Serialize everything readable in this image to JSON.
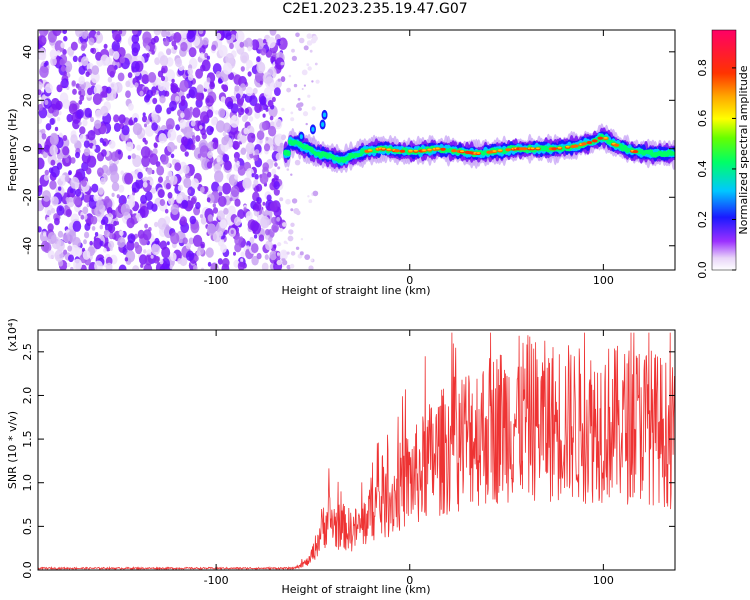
{
  "title": "C2E1.2023.235.19.47.G07",
  "chart_data": [
    {
      "type": "heatmap",
      "xlabel": "Height of straight line (km)",
      "ylabel": "Frequency (Hz)",
      "xlim": [
        -192,
        137
      ],
      "ylim": [
        -50,
        49
      ],
      "xticks": [
        -100,
        0,
        100
      ],
      "yticks": [
        -40,
        -20,
        0,
        20,
        40
      ],
      "colorbar": {
        "label": "Normalized spectral amplitude",
        "range": [
          0.0,
          0.95
        ],
        "ticks": [
          "0.0",
          "0.2",
          "0.4",
          "0.6",
          "0.8"
        ]
      },
      "ridge": [
        {
          "x": -62,
          "f": 3
        },
        {
          "x": -55,
          "f": 1
        },
        {
          "x": -48,
          "f": -2
        },
        {
          "x": -42,
          "f": -3
        },
        {
          "x": -36,
          "f": -5
        },
        {
          "x": -30,
          "f": -3
        },
        {
          "x": -22,
          "f": -1
        },
        {
          "x": -15,
          "f": 0
        },
        {
          "x": -5,
          "f": -1
        },
        {
          "x": 5,
          "f": -1
        },
        {
          "x": 15,
          "f": 0
        },
        {
          "x": 25,
          "f": -1
        },
        {
          "x": 35,
          "f": -2
        },
        {
          "x": 45,
          "f": -1
        },
        {
          "x": 55,
          "f": 0
        },
        {
          "x": 65,
          "f": 0
        },
        {
          "x": 75,
          "f": 0
        },
        {
          "x": 85,
          "f": 1
        },
        {
          "x": 95,
          "f": 3
        },
        {
          "x": 100,
          "f": 5
        },
        {
          "x": 105,
          "f": 2
        },
        {
          "x": 115,
          "f": -1
        },
        {
          "x": 125,
          "f": -2
        },
        {
          "x": 137,
          "f": -2
        }
      ],
      "noise_region": {
        "x_from": -192,
        "x_to": -65
      }
    },
    {
      "type": "line",
      "xlabel": "Height of straight line (km)",
      "ylabel": "SNR (10 * v/v)",
      "multiplier": "(x10⁴)",
      "xlim": [
        -192,
        137
      ],
      "ylim": [
        0,
        2.75
      ],
      "xticks": [
        -100,
        0,
        100
      ],
      "yticks": [
        "0.0",
        "0.5",
        "1.0",
        "1.5",
        "2.0",
        "2.5"
      ],
      "color": "#ee3333",
      "series": [
        {
          "x": [
            -192,
            -100,
            -60,
            -52,
            -48,
            -45,
            -42,
            -40,
            -38,
            -35,
            -30,
            -25,
            -22,
            -20,
            -15,
            -10,
            -5,
            0,
            5,
            10,
            20,
            30,
            40,
            50,
            60,
            70,
            80,
            90,
            100,
            110,
            120,
            130,
            137
          ],
          "y": [
            0.02,
            0.02,
            0.02,
            0.1,
            0.3,
            0.5,
            0.6,
            0.55,
            0.5,
            0.5,
            0.45,
            0.5,
            0.6,
            0.7,
            0.75,
            0.8,
            0.95,
            1.05,
            1.1,
            1.25,
            1.4,
            1.55,
            1.6,
            1.7,
            1.75,
            1.7,
            1.7,
            1.65,
            1.7,
            1.65,
            1.7,
            1.6,
            1.5
          ]
        }
      ]
    }
  ]
}
